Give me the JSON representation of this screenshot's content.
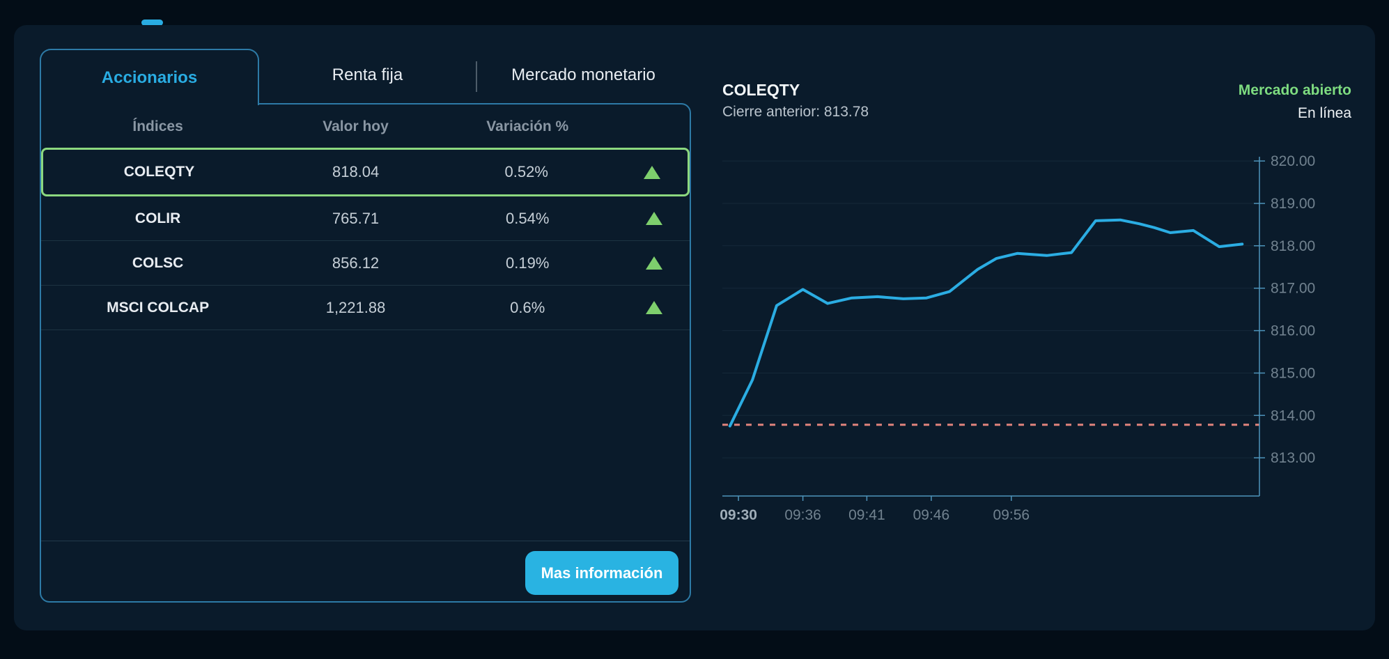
{
  "tabs": {
    "items": [
      {
        "label": "Accionarios",
        "active": true
      },
      {
        "label": "Renta fija",
        "active": false
      },
      {
        "label": "Mercado monetario",
        "active": false
      }
    ]
  },
  "table": {
    "headers": [
      "Índices",
      "Valor hoy",
      "Variación %"
    ],
    "rows": [
      {
        "name": "COLEQTY",
        "value": "818.04",
        "change": "0.52%",
        "direction": "up",
        "highlighted": true
      },
      {
        "name": "COLIR",
        "value": "765.71",
        "change": "0.54%",
        "direction": "up",
        "highlighted": false
      },
      {
        "name": "COLSC",
        "value": "856.12",
        "change": "0.19%",
        "direction": "up",
        "highlighted": false
      },
      {
        "name": "MSCI COLCAP",
        "value": "1,221.88",
        "change": "0.6%",
        "direction": "up",
        "highlighted": false
      }
    ],
    "footer": {
      "more_info_label": "Mas información"
    }
  },
  "chart_header": {
    "title": "COLEQTY",
    "previous_close": "Cierre anterior: 813.78",
    "market_status": "Mercado abierto",
    "connection_status": "En línea"
  },
  "colors": {
    "accent_blue": "#29ace2",
    "button_blue": "#29b3e2",
    "positive_green": "#7ecf6d",
    "highlight_green": "#8cd87f",
    "status_green": "#7edc80",
    "line_blue": "#2bade3",
    "reference_salmon": "#e0837c"
  },
  "chart_data": {
    "type": "line",
    "title": "COLEQTY",
    "xlabel": "",
    "ylabel": "",
    "grid": true,
    "legend": "none",
    "ylim": [
      812.1,
      820.1
    ],
    "y_ticks": [
      {
        "value": 820,
        "label": "820.00"
      },
      {
        "value": 819,
        "label": "819.00"
      },
      {
        "value": 818,
        "label": "818.00"
      },
      {
        "value": 817,
        "label": "817.00"
      },
      {
        "value": 816,
        "label": "816.00"
      },
      {
        "value": 815,
        "label": "815.00"
      },
      {
        "value": 814,
        "label": "814.00"
      },
      {
        "value": 813,
        "label": "813.00"
      }
    ],
    "x_ticks": [
      {
        "label": "09:30",
        "pos": 0.03
      },
      {
        "label": "09:36",
        "pos": 0.15
      },
      {
        "label": "09:41",
        "pos": 0.269
      },
      {
        "label": "09:46",
        "pos": 0.389
      },
      {
        "label": "09:56",
        "pos": 0.538
      }
    ],
    "reference_line": {
      "label": "Cierre anterior",
      "value": 813.78,
      "color": "#e0837c",
      "style": "dashed"
    },
    "series": [
      {
        "name": "COLEQTY",
        "color": "#2bade3",
        "points": [
          {
            "pos": 0.014,
            "value": 813.75
          },
          {
            "pos": 0.056,
            "value": 814.84
          },
          {
            "pos": 0.101,
            "value": 816.59
          },
          {
            "pos": 0.15,
            "value": 816.97
          },
          {
            "pos": 0.196,
            "value": 816.64
          },
          {
            "pos": 0.241,
            "value": 816.77
          },
          {
            "pos": 0.289,
            "value": 816.8
          },
          {
            "pos": 0.337,
            "value": 816.75
          },
          {
            "pos": 0.38,
            "value": 816.77
          },
          {
            "pos": 0.423,
            "value": 816.92
          },
          {
            "pos": 0.475,
            "value": 817.44
          },
          {
            "pos": 0.51,
            "value": 817.7
          },
          {
            "pos": 0.549,
            "value": 817.82
          },
          {
            "pos": 0.604,
            "value": 817.77
          },
          {
            "pos": 0.65,
            "value": 817.84
          },
          {
            "pos": 0.695,
            "value": 818.59
          },
          {
            "pos": 0.741,
            "value": 818.61
          },
          {
            "pos": 0.776,
            "value": 818.52
          },
          {
            "pos": 0.804,
            "value": 818.43
          },
          {
            "pos": 0.834,
            "value": 818.31
          },
          {
            "pos": 0.877,
            "value": 818.36
          },
          {
            "pos": 0.925,
            "value": 817.98
          },
          {
            "pos": 0.968,
            "value": 818.04
          }
        ]
      }
    ]
  }
}
